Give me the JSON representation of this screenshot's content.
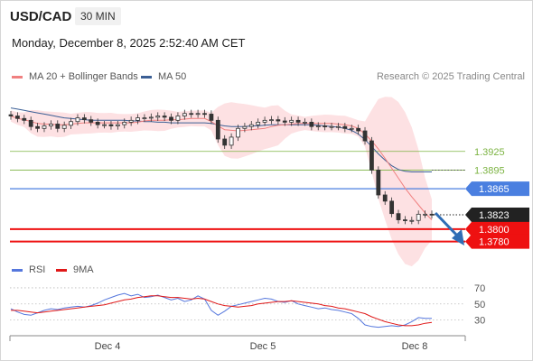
{
  "header": {
    "symbol": "USD/CAD",
    "timeframe": "30 MIN",
    "datetime": "Monday, December 8, 2025 2:52:40 AM CET"
  },
  "legend": {
    "ma20_label": "MA 20 + Bollinger Bands",
    "ma50_label": "MA 50",
    "copyright": "Research © 2025 Trading Central"
  },
  "rsi_legend": {
    "rsi_label": "RSI",
    "ma9_label": "9MA"
  },
  "colors": {
    "ma20": "#f08080",
    "ma50": "#3b5f95",
    "bollinger_fill": "#fde1e3",
    "resistance": "#7cb342",
    "pivot": "#4a7fe0",
    "support": "#ee1111",
    "current": "#222222",
    "rsi": "#5577dd",
    "rsi_ma": "#e01818"
  },
  "chart_data": {
    "type": "candlestick",
    "x_tick_labels": [
      "Dec 4",
      "Dec 5",
      "Dec 8"
    ],
    "price_levels": [
      {
        "label": "1.3925",
        "value": 1.3925,
        "kind": "resistance"
      },
      {
        "label": "1.3895",
        "value": 1.3895,
        "kind": "resistance"
      },
      {
        "label": "1.3865",
        "value": 1.3865,
        "kind": "pivot"
      },
      {
        "label": "1.3823",
        "value": 1.3823,
        "kind": "current"
      },
      {
        "label": "1.3800",
        "value": 1.38,
        "kind": "support"
      },
      {
        "label": "1.3780",
        "value": 1.378,
        "kind": "support"
      }
    ],
    "closes": [
      1.3982,
      1.3978,
      1.3975,
      1.3965,
      1.3962,
      1.3966,
      1.3969,
      1.3962,
      1.3967,
      1.3973,
      1.3979,
      1.3976,
      1.3972,
      1.3968,
      1.3968,
      1.3966,
      1.3968,
      1.3972,
      1.3975,
      1.3979,
      1.3979,
      1.398,
      1.3982,
      1.398,
      1.3975,
      1.3982,
      1.3986,
      1.3985,
      1.3986,
      1.3985,
      1.3975,
      1.3945,
      1.3935,
      1.3948,
      1.3962,
      1.3965,
      1.3968,
      1.3972,
      1.3975,
      1.3976,
      1.3974,
      1.3972,
      1.3975,
      1.3972,
      1.3972,
      1.3965,
      1.3966,
      1.3965,
      1.3965,
      1.3965,
      1.3962,
      1.3962,
      1.3958,
      1.3942,
      1.3895,
      1.3855,
      1.3845,
      1.3825,
      1.3815,
      1.3814,
      1.3814,
      1.3824,
      1.3824,
      1.3823
    ],
    "y_range": [
      1.3765,
      1.4035
    ],
    "ma20_points": [
      1.3982,
      1.3978,
      1.3976,
      1.3973,
      1.397,
      1.3969,
      1.3969,
      1.3968,
      1.3968,
      1.3969,
      1.397,
      1.3971,
      1.3971,
      1.3971,
      1.3971,
      1.3971,
      1.3971,
      1.3971,
      1.3971,
      1.3972,
      1.3974,
      1.3975,
      1.3975,
      1.3975,
      1.3976,
      1.3976,
      1.3977,
      1.3978,
      1.3978,
      1.3978,
      1.3973,
      1.3966,
      1.396,
      1.3959,
      1.3958,
      1.3959,
      1.396,
      1.3961,
      1.3962,
      1.3965,
      1.3967,
      1.3968,
      1.3969,
      1.397,
      1.397,
      1.397,
      1.397,
      1.397,
      1.397,
      1.3969,
      1.3968,
      1.3966,
      1.3962,
      1.3953,
      1.3942,
      1.3929,
      1.3914,
      1.3898,
      1.3882,
      1.3866,
      1.3852,
      1.3839,
      1.3826,
      1.3815
    ],
    "ma50_points": [
      1.3995,
      1.3993,
      1.3991,
      1.3989,
      1.3987,
      1.3985,
      1.3983,
      1.3981,
      1.3979,
      1.3978,
      1.3977,
      1.3976,
      1.3975,
      1.3975,
      1.3975,
      1.3975,
      1.3975,
      1.3975,
      1.3974,
      1.3974,
      1.3973,
      1.3973,
      1.3972,
      1.3972,
      1.3971,
      1.3971,
      1.3971,
      1.3971,
      1.3971,
      1.3971,
      1.397,
      1.3968,
      1.3966,
      1.3965,
      1.3965,
      1.3965,
      1.3966,
      1.3966,
      1.3967,
      1.3968,
      1.3968,
      1.3968,
      1.3968,
      1.3968,
      1.3968,
      1.3968,
      1.3967,
      1.3966,
      1.3965,
      1.3964,
      1.3962,
      1.3959,
      1.3953,
      1.3944,
      1.3933,
      1.3921,
      1.3911,
      1.3902,
      1.3896,
      1.3893,
      1.3892,
      1.3892,
      1.3892,
      1.3892
    ],
    "rsi": {
      "y_ticks": [
        70,
        50,
        30
      ],
      "y_range": [
        15,
        80
      ],
      "rsi_points": [
        44,
        40,
        37,
        36,
        39,
        42,
        44,
        43,
        45,
        46,
        47,
        46,
        48,
        51,
        55,
        58,
        61,
        63,
        60,
        62,
        58,
        59,
        61,
        58,
        55,
        57,
        53,
        55,
        60,
        56,
        42,
        36,
        41,
        47,
        49,
        51,
        53,
        55,
        57,
        56,
        53,
        52,
        54,
        50,
        48,
        46,
        44,
        45,
        43,
        42,
        40,
        38,
        32,
        24,
        22,
        21,
        22,
        23,
        22,
        24,
        28,
        33,
        32,
        32
      ],
      "ma9_points": [
        42,
        42,
        41,
        40,
        39,
        40,
        41,
        42,
        43,
        44,
        45,
        46,
        47,
        48,
        49,
        51,
        53,
        55,
        56,
        58,
        59,
        60,
        60,
        59,
        58,
        58,
        57,
        56,
        57,
        56,
        53,
        50,
        48,
        47,
        46,
        47,
        48,
        50,
        51,
        52,
        53,
        53,
        54,
        53,
        52,
        51,
        50,
        48,
        47,
        45,
        44,
        42,
        40,
        38,
        34,
        31,
        28,
        26,
        24,
        23,
        23,
        24,
        26,
        27
      ]
    }
  }
}
